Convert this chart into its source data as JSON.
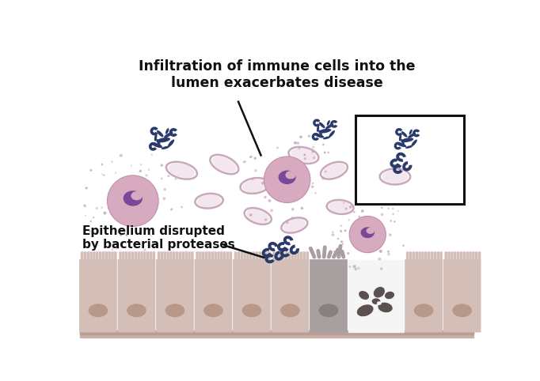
{
  "bg_color": "#ffffff",
  "title1": "Infiltration of immune cells into the",
  "title2": "lumen exacerbates disease",
  "label1": "Epithelium disrupted\nby bacterial proteases",
  "cell_color": "#d4bfb8",
  "cell_dark": "#b8a098",
  "cell_base": "#c8b0a5",
  "cell_nucleus": "#b89888",
  "disrupted_color": "#a8a0a0",
  "bacteria_color": "#2a3a6a",
  "rbc_fill": "#e8d0dc",
  "rbc_edge": "#c8a8bc",
  "immune_fill": "#d8aac0",
  "immune_edge": "#c090a8",
  "immune_nuc": "#7a4898",
  "arrow_color": "#111111",
  "box_color": "#111111",
  "dark_blob": "#5a5050",
  "scatter_dot": "#c0a8b8",
  "text_color": "#111111",
  "gap_bg": "#f5f5f5"
}
